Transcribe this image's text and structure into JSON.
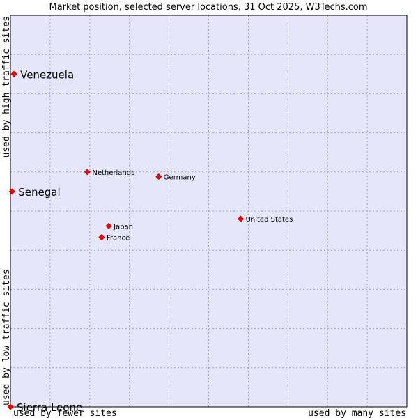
{
  "chart_data": {
    "type": "scatter",
    "title": "Market position, selected server locations, 31 Oct 2025, W3Techs.com",
    "xlabel_left": "used by fewer sites",
    "xlabel_right": "used by many sites",
    "ylabel_bottom": "used by low traffic sites",
    "ylabel_top": "used by high traffic sites",
    "xlim": [
      0,
      100
    ],
    "ylim": [
      0,
      100
    ],
    "grid": true,
    "points": [
      {
        "name": "Venezuela",
        "x": 0.9,
        "y": 85.0,
        "highlight": true
      },
      {
        "name": "Senegal",
        "x": 0.4,
        "y": 55.0,
        "highlight": true
      },
      {
        "name": "Sierra Leone",
        "x": 0.0,
        "y": 0.0,
        "highlight": true
      },
      {
        "name": "Netherlands",
        "x": 19.4,
        "y": 60.0,
        "highlight": false
      },
      {
        "name": "Germany",
        "x": 37.4,
        "y": 58.8,
        "highlight": false
      },
      {
        "name": "United States",
        "x": 58.1,
        "y": 48.0,
        "highlight": false
      },
      {
        "name": "Japan",
        "x": 24.8,
        "y": 46.2,
        "highlight": false
      },
      {
        "name": "France",
        "x": 23.0,
        "y": 43.3,
        "highlight": false
      }
    ]
  },
  "colors": {
    "plot_background": "#e6e6fa",
    "grid": "#a0a0b4",
    "marker": "#ff0000",
    "marker_outline": "#b40000"
  }
}
